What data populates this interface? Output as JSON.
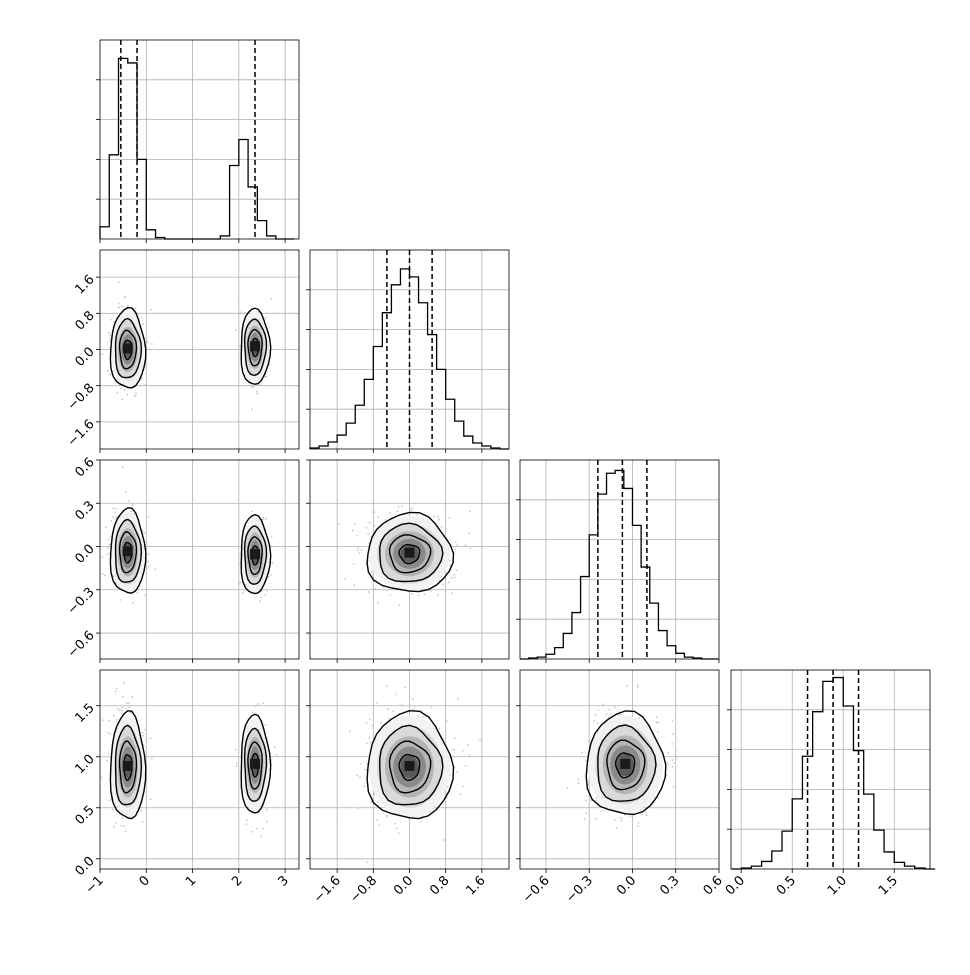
{
  "chart_data": {
    "type": "corner",
    "description_note": "",
    "variables": 4,
    "axes": [
      {
        "ticks": [
          -1,
          0,
          1,
          2,
          3
        ],
        "tick_labels": [
          "−1",
          "0",
          "1",
          "2",
          "3"
        ],
        "range": [
          -1,
          3.3
        ]
      },
      {
        "ticks": [
          -1.6,
          -0.8,
          0.0,
          0.8,
          1.6
        ],
        "tick_labels": [
          "−1.6",
          "−0.8",
          "0.0",
          "0.8",
          "1.6"
        ],
        "range": [
          -2.2,
          2.2
        ]
      },
      {
        "ticks": [
          -0.6,
          -0.3,
          0.0,
          0.3,
          0.6
        ],
        "tick_labels": [
          "−0.6",
          "−0.3",
          "0.0",
          "0.3",
          "0.6"
        ],
        "range": [
          -0.78,
          0.6
        ]
      },
      {
        "ticks": [
          0.0,
          0.5,
          1.0,
          1.5
        ],
        "tick_labels": [
          "0.0",
          "0.5",
          "1.0",
          "1.5"
        ],
        "range": [
          -0.1,
          1.85
        ]
      }
    ],
    "quantiles": [
      [
        -0.55,
        -0.2,
        2.35
      ],
      [
        -0.5,
        0.0,
        0.5
      ],
      [
        -0.24,
        -0.07,
        0.1
      ],
      [
        0.65,
        0.9,
        1.15
      ]
    ],
    "histograms": [
      {
        "edges": [
          -1.0,
          -0.8,
          -0.6,
          -0.4,
          -0.2,
          0.0,
          0.2,
          0.4,
          0.6,
          0.8,
          1.0,
          1.2,
          1.4,
          1.6,
          1.8,
          2.0,
          2.2,
          2.4,
          2.6,
          2.8,
          3.0,
          3.2
        ],
        "counts": [
          8,
          55,
          118,
          115,
          52,
          6,
          1,
          0,
          0,
          0,
          0,
          0,
          0,
          2,
          48,
          65,
          34,
          12,
          2,
          0,
          0
        ],
        "max": 130
      },
      {
        "edges": [
          -2.2,
          -2.0,
          -1.8,
          -1.6,
          -1.4,
          -1.2,
          -1.0,
          -0.8,
          -0.6,
          -0.4,
          -0.2,
          0.0,
          0.2,
          0.4,
          0.6,
          0.8,
          1.0,
          1.2,
          1.4,
          1.6,
          1.8,
          2.0,
          2.2
        ],
        "counts": [
          1,
          3,
          7,
          14,
          26,
          44,
          70,
          103,
          137,
          165,
          181,
          173,
          147,
          115,
          80,
          50,
          28,
          13,
          6,
          3,
          1,
          0
        ],
        "max": 200
      },
      {
        "edges": [
          -0.78,
          -0.72,
          -0.66,
          -0.6,
          -0.54,
          -0.48,
          -0.42,
          -0.36,
          -0.3,
          -0.24,
          -0.18,
          -0.12,
          -0.06,
          0.0,
          0.06,
          0.12,
          0.18,
          0.24,
          0.3,
          0.36,
          0.42,
          0.48,
          0.54,
          0.6
        ],
        "counts": [
          0,
          1,
          2,
          5,
          12,
          27,
          49,
          87,
          131,
          174,
          196,
          199,
          180,
          141,
          97,
          59,
          30,
          14,
          6,
          2,
          1,
          0,
          0
        ],
        "max": 210
      },
      {
        "edges": [
          -0.1,
          0.0,
          0.1,
          0.2,
          0.3,
          0.4,
          0.5,
          0.6,
          0.7,
          0.8,
          0.9,
          1.0,
          1.1,
          1.2,
          1.3,
          1.4,
          1.5,
          1.6,
          1.7,
          1.8,
          1.9
        ],
        "counts": [
          0,
          1,
          3,
          8,
          19,
          40,
          74,
          119,
          166,
          198,
          202,
          172,
          125,
          79,
          41,
          18,
          7,
          3,
          1,
          0
        ],
        "max": 210
      }
    ],
    "pairs": [
      {
        "row": 1,
        "col": 0,
        "clusters": [
          {
            "mx": -0.4,
            "my": 0.0,
            "sx": 0.18,
            "sy": 0.42,
            "w": 0.65
          },
          {
            "mx": 2.35,
            "my": 0.05,
            "sx": 0.15,
            "sy": 0.4,
            "w": 0.35
          }
        ]
      },
      {
        "row": 2,
        "col": 0,
        "clusters": [
          {
            "mx": -0.4,
            "my": -0.04,
            "sx": 0.18,
            "sy": 0.14,
            "w": 0.65
          },
          {
            "mx": 2.35,
            "my": -0.06,
            "sx": 0.15,
            "sy": 0.13,
            "w": 0.35
          }
        ]
      },
      {
        "row": 3,
        "col": 0,
        "clusters": [
          {
            "mx": -0.4,
            "my": 0.9,
            "sx": 0.18,
            "sy": 0.25,
            "w": 0.65
          },
          {
            "mx": 2.35,
            "my": 0.92,
            "sx": 0.15,
            "sy": 0.23,
            "w": 0.35
          }
        ]
      },
      {
        "row": 2,
        "col": 1,
        "clusters": [
          {
            "mx": 0.0,
            "my": -0.05,
            "sx": 0.45,
            "sy": 0.13,
            "w": 1.0
          }
        ]
      },
      {
        "row": 3,
        "col": 1,
        "clusters": [
          {
            "mx": 0.0,
            "my": 0.9,
            "sx": 0.45,
            "sy": 0.25,
            "w": 1.0
          }
        ]
      },
      {
        "row": 3,
        "col": 2,
        "clusters": [
          {
            "mx": -0.05,
            "my": 0.92,
            "sx": 0.13,
            "sy": 0.24,
            "w": 1.0
          }
        ]
      }
    ]
  }
}
